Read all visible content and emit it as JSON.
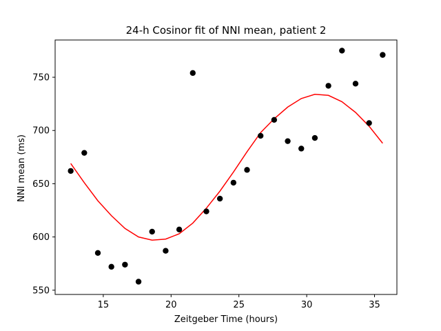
{
  "chart_data": {
    "type": "scatter",
    "title": "24-h Cosinor fit of NNI mean, patient 2",
    "xlabel": "Zeitgeber Time (hours)",
    "ylabel": "NNI mean (ms)",
    "xlim": [
      11.45,
      36.65
    ],
    "ylim": [
      546,
      785
    ],
    "xticks": [
      15,
      20,
      25,
      30,
      35
    ],
    "yticks": [
      550,
      600,
      650,
      700,
      750
    ],
    "grid": false,
    "series": [
      {
        "type": "scatter",
        "color": "#000000",
        "x": [
          12.6,
          13.6,
          14.6,
          15.6,
          16.6,
          17.6,
          18.6,
          19.6,
          20.6,
          21.6,
          22.6,
          23.6,
          24.6,
          25.6,
          26.6,
          27.6,
          28.6,
          29.6,
          30.6,
          31.6,
          32.6,
          33.6,
          34.6,
          35.6
        ],
        "y": [
          662,
          679,
          585,
          572,
          574,
          558,
          605,
          587,
          607,
          754,
          624,
          636,
          651,
          663,
          695,
          710,
          690,
          683,
          693,
          742,
          775,
          744,
          707,
          771
        ]
      },
      {
        "type": "line",
        "color": "#ff0000",
        "x": [
          12.6,
          13.6,
          14.6,
          15.6,
          16.6,
          17.6,
          18.6,
          19.6,
          20.6,
          21.6,
          22.6,
          23.6,
          24.6,
          25.6,
          26.6,
          27.6,
          28.6,
          29.6,
          30.6,
          31.6,
          32.6,
          33.6,
          34.6,
          35.6
        ],
        "y": [
          669,
          651,
          634,
          620,
          608,
          600,
          597,
          598,
          603,
          613,
          627,
          643,
          661,
          680,
          698,
          711,
          722,
          730,
          734,
          733,
          727,
          717,
          704,
          688
        ]
      }
    ]
  }
}
